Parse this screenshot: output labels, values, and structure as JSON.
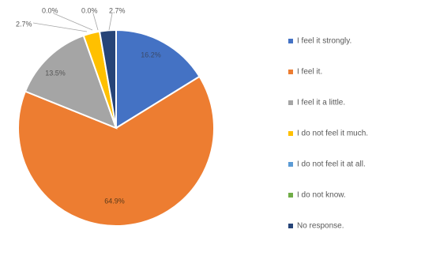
{
  "chart_data": {
    "type": "pie",
    "title": "",
    "slices": [
      {
        "label": "I feel it strongly.",
        "value": 16.2,
        "display": "16.2%",
        "color": "#4472C4"
      },
      {
        "label": "I feel it.",
        "value": 64.9,
        "display": "64.9%",
        "color": "#ED7D31"
      },
      {
        "label": "I feel it a little.",
        "value": 13.5,
        "display": "13.5%",
        "color": "#A5A5A5"
      },
      {
        "label": "I do not feel it much.",
        "value": 2.7,
        "display": "2.7%",
        "color": "#FFC000"
      },
      {
        "label": "I do not feel it at all.",
        "value": 0.0,
        "display": "0.0%",
        "color": "#5B9BD5"
      },
      {
        "label": "I do not know.",
        "value": 0.0,
        "display": "0.0%",
        "color": "#70AD47"
      },
      {
        "label": "No response.",
        "value": 2.7,
        "display": "2.7%",
        "color": "#264478"
      }
    ],
    "legend_position": "right",
    "start_angle": "12 o'clock",
    "direction": "clockwise"
  }
}
